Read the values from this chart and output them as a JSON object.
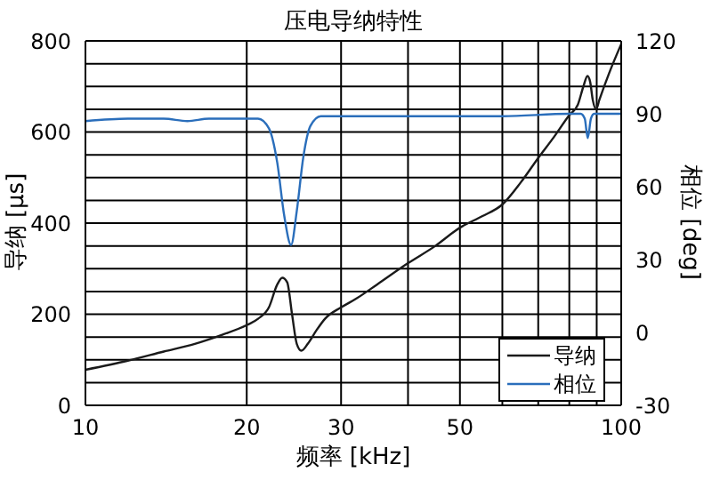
{
  "chart_data": {
    "type": "line",
    "title": "压电导纳特性",
    "xlabel": "频率 [kHz]",
    "ylabel": "导纳 [μs]",
    "y2label": "相位 [deg]",
    "log": "x",
    "grid": true,
    "legend": "bottom right",
    "marker": "none",
    "line_style": "solid",
    "xlim": [
      10,
      100
    ],
    "xticks": [
      10,
      20,
      30,
      {
        "value": 40,
        "label": null
      },
      50,
      {
        "value": 60,
        "label": null
      },
      {
        "value": 70,
        "label": null
      },
      {
        "value": 80,
        "label": null
      },
      {
        "value": 90,
        "label": null
      },
      100
    ],
    "ylim": [
      0,
      800
    ],
    "yticks": [
      0,
      {
        "value": 50,
        "label": null
      },
      {
        "value": 100,
        "label": null
      },
      {
        "value": 150,
        "label": null
      },
      200,
      {
        "value": 250,
        "label": null
      },
      {
        "value": 300,
        "label": null
      },
      {
        "value": 350,
        "label": null
      },
      400,
      {
        "value": 450,
        "label": null
      },
      {
        "value": 500,
        "label": null
      },
      {
        "value": 550,
        "label": null
      },
      600,
      {
        "value": 650,
        "label": null
      },
      {
        "value": 700,
        "label": null
      },
      {
        "value": 750,
        "label": null
      },
      800
    ],
    "y2lim": [
      -30,
      120
    ],
    "y2ticks": [
      -30,
      0,
      30,
      60,
      90,
      120
    ],
    "series": [
      {
        "name": "导纳",
        "color": "#1a1a1a",
        "x": [
          10,
          12,
          14,
          16,
          18,
          20,
          21,
          22,
          22.8,
          23.3,
          23.8,
          24.3,
          24.8,
          25.3,
          26,
          27,
          28,
          30,
          32,
          35,
          40,
          45,
          50,
          55,
          60,
          65,
          70,
          75,
          80,
          83,
          85,
          86.5,
          87.5,
          88.5,
          89.8,
          91,
          95,
          100
        ],
        "values": [
          78,
          98,
          118,
          135,
          155,
          176,
          190,
          215,
          265,
          280,
          270,
          200,
          135,
          120,
          135,
          165,
          190,
          215,
          234,
          265,
          312,
          350,
          390,
          415,
          441,
          490,
          543,
          590,
          637,
          660,
          700,
          723,
          710,
          670,
          650,
          670,
          730,
          793
        ]
      },
      {
        "name": "相位",
        "color": "#2a6ebb",
        "axis": "y2",
        "x": [
          10,
          12,
          14,
          15.5,
          17,
          20,
          21,
          22,
          22.8,
          23.5,
          24.2,
          24.8,
          25.5,
          26.3,
          27.5,
          30,
          40,
          55,
          60,
          80,
          84,
          85.5,
          86.6,
          87.8,
          89,
          100
        ],
        "values": [
          87,
          88,
          88,
          87,
          88,
          88,
          88,
          84,
          70,
          48,
          36,
          50,
          72,
          85,
          89,
          89,
          89,
          89,
          89,
          90,
          90,
          88,
          80,
          88,
          90,
          90
        ]
      }
    ]
  }
}
